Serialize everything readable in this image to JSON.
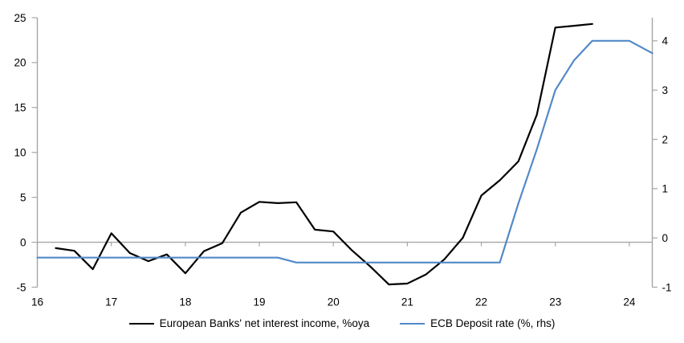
{
  "chart_data": {
    "type": "line",
    "title": "",
    "x_axis": {
      "label": "",
      "tick_labels": [
        "16",
        "17",
        "18",
        "19",
        "20",
        "21",
        "22",
        "23",
        "24"
      ],
      "tick_values": [
        16,
        17,
        18,
        19,
        20,
        21,
        22,
        23,
        24
      ],
      "range": [
        16,
        24.31
      ]
    },
    "y_axis_left": {
      "label": "",
      "tick_values": [
        25,
        20,
        15,
        10,
        5,
        0,
        -5
      ],
      "range": [
        -5,
        25
      ]
    },
    "y_axis_right": {
      "label": "",
      "tick_values": [
        4,
        3,
        2,
        1,
        0,
        -1
      ],
      "range": [
        -1,
        4.47
      ]
    },
    "grid": "zero-line-only",
    "legend_position": "bottom-center",
    "series": [
      {
        "name": "European Banks' net interest income, %oya",
        "axis": "left",
        "color": "#000000",
        "points": [
          [
            16.25,
            -0.65
          ],
          [
            16.5,
            -0.95
          ],
          [
            16.75,
            -3.0
          ],
          [
            17.0,
            1.0
          ],
          [
            17.25,
            -1.2
          ],
          [
            17.5,
            -2.1
          ],
          [
            17.75,
            -1.35
          ],
          [
            18.0,
            -3.45
          ],
          [
            18.25,
            -1.0
          ],
          [
            18.5,
            -0.1
          ],
          [
            18.75,
            3.3
          ],
          [
            19.0,
            4.5
          ],
          [
            19.25,
            4.35
          ],
          [
            19.5,
            4.45
          ],
          [
            19.75,
            1.4
          ],
          [
            20.0,
            1.2
          ],
          [
            20.25,
            -0.9
          ],
          [
            20.5,
            -2.7
          ],
          [
            20.75,
            -4.7
          ],
          [
            21.0,
            -4.6
          ],
          [
            21.25,
            -3.6
          ],
          [
            21.5,
            -1.9
          ],
          [
            21.75,
            0.5
          ],
          [
            22.0,
            5.2
          ],
          [
            22.25,
            6.9
          ],
          [
            22.5,
            9.0
          ],
          [
            22.75,
            14.2
          ],
          [
            23.0,
            23.9
          ],
          [
            23.25,
            24.1
          ],
          [
            23.5,
            24.3
          ]
        ]
      },
      {
        "name": "ECB Deposit rate (%, rhs)",
        "axis": "right",
        "color": "#5289C7",
        "points": [
          [
            16.0,
            -0.4
          ],
          [
            16.25,
            -0.4
          ],
          [
            16.5,
            -0.4
          ],
          [
            16.75,
            -0.4
          ],
          [
            17.0,
            -0.4
          ],
          [
            17.25,
            -0.4
          ],
          [
            17.5,
            -0.4
          ],
          [
            17.75,
            -0.4
          ],
          [
            18.0,
            -0.4
          ],
          [
            18.25,
            -0.4
          ],
          [
            18.5,
            -0.4
          ],
          [
            18.75,
            -0.4
          ],
          [
            19.0,
            -0.4
          ],
          [
            19.25,
            -0.4
          ],
          [
            19.5,
            -0.5
          ],
          [
            19.75,
            -0.5
          ],
          [
            20.0,
            -0.5
          ],
          [
            20.25,
            -0.5
          ],
          [
            20.5,
            -0.5
          ],
          [
            20.75,
            -0.5
          ],
          [
            21.0,
            -0.5
          ],
          [
            21.25,
            -0.5
          ],
          [
            21.5,
            -0.5
          ],
          [
            21.75,
            -0.5
          ],
          [
            22.0,
            -0.5
          ],
          [
            22.25,
            -0.5
          ],
          [
            22.5,
            0.7
          ],
          [
            22.75,
            1.8
          ],
          [
            23.0,
            3.0
          ],
          [
            23.25,
            3.6
          ],
          [
            23.5,
            4.0
          ],
          [
            23.75,
            4.0
          ],
          [
            24.0,
            4.0
          ],
          [
            24.31,
            3.75
          ]
        ]
      }
    ]
  },
  "legend": {
    "items": [
      {
        "label": "European Banks' net interest income, %oya",
        "color": "#000000"
      },
      {
        "label": "ECB Deposit rate (%, rhs)",
        "color": "#5289C7"
      }
    ]
  },
  "colors": {
    "background": "#ffffff",
    "axis": "#a6a6a6",
    "zero_line": "#a6a6a6",
    "tick_text": "#000000",
    "series_nii": "#000000",
    "series_ecb": "#5289C7"
  }
}
